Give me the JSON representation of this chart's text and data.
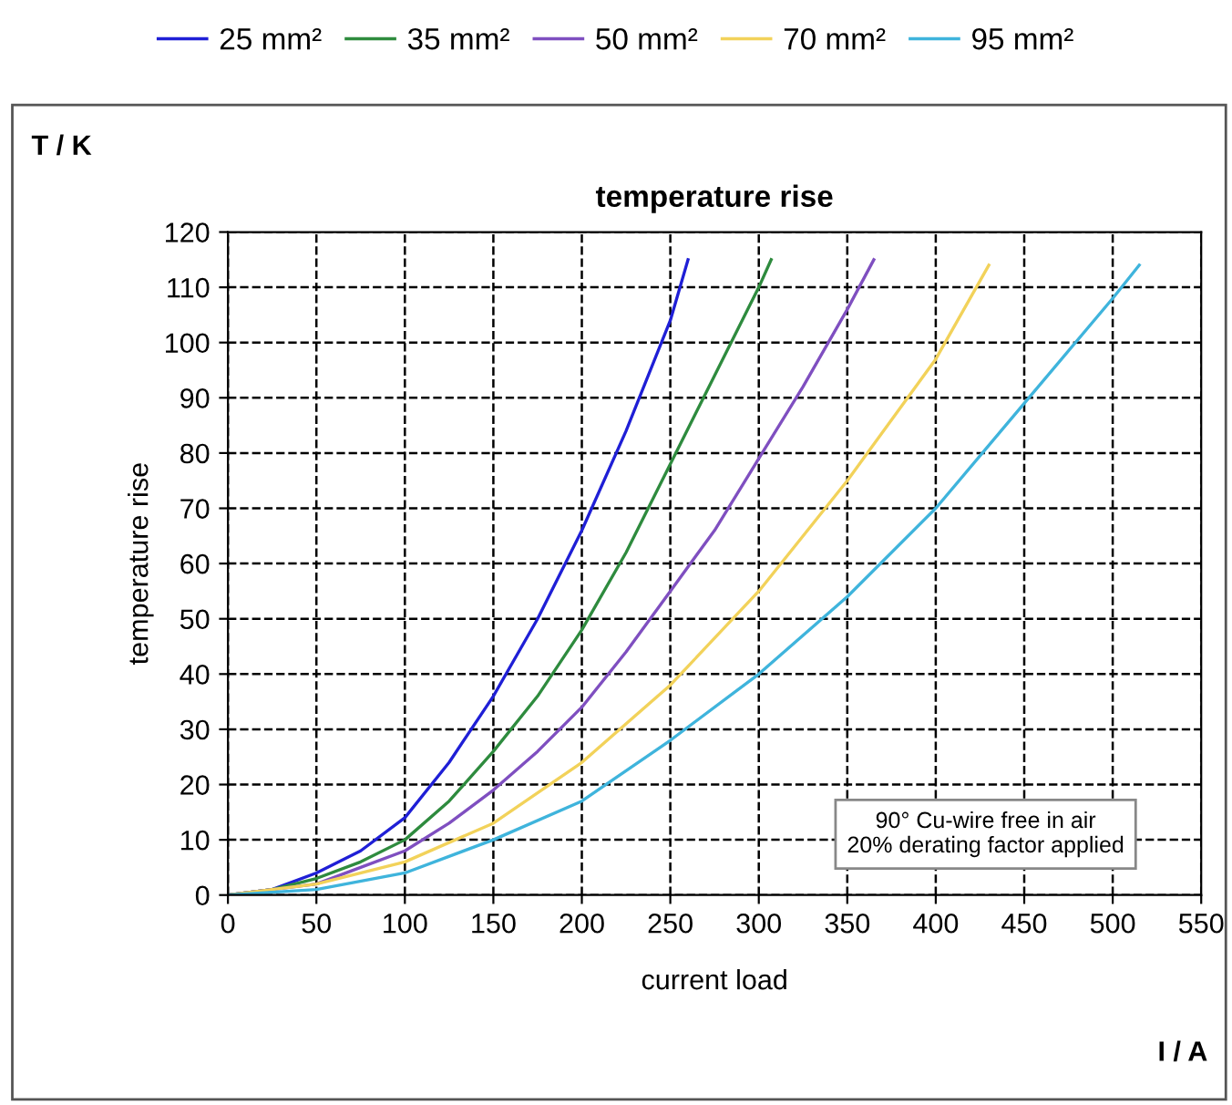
{
  "chart_data": {
    "type": "line",
    "title": "temperature rise",
    "xlabel": "current load",
    "ylabel": "temperature rise",
    "annotations": [
      "T / K",
      "I / A",
      "90° Cu-wire free in air\n20% derating factor applied"
    ],
    "xlim": [
      0,
      550
    ],
    "xticks": [
      0,
      50,
      100,
      150,
      200,
      250,
      300,
      350,
      400,
      450,
      500,
      550
    ],
    "ylim": [
      0,
      120
    ],
    "yticks": [
      0,
      10,
      20,
      30,
      40,
      50,
      60,
      70,
      80,
      90,
      100,
      110,
      120
    ],
    "grid": true,
    "legend": "top",
    "line_style": "solid",
    "marker": "none",
    "series": [
      {
        "name": "25 mm²",
        "color": "#1f1fd6",
        "x": [
          0,
          25,
          50,
          75,
          100,
          125,
          150,
          175,
          200,
          225,
          250,
          260
        ],
        "values": [
          0,
          1,
          4,
          8,
          14,
          24,
          36,
          50,
          66,
          84,
          104,
          115
        ]
      },
      {
        "name": "35 mm²",
        "color": "#2e8b3e",
        "x": [
          0,
          25,
          50,
          75,
          100,
          125,
          150,
          175,
          200,
          225,
          250,
          275,
          300,
          307
        ],
        "values": [
          0,
          1,
          3,
          6,
          10,
          17,
          26,
          36,
          48,
          62,
          78,
          94,
          110,
          115
        ]
      },
      {
        "name": "50 mm²",
        "color": "#7f4fc0",
        "x": [
          0,
          25,
          50,
          75,
          100,
          125,
          150,
          175,
          200,
          225,
          250,
          275,
          300,
          325,
          350,
          365
        ],
        "values": [
          0,
          1,
          2,
          5,
          8,
          13,
          19,
          26,
          34,
          44,
          55,
          66,
          79,
          92,
          106,
          115
        ]
      },
      {
        "name": "70 mm²",
        "color": "#f2d25a",
        "x": [
          0,
          50,
          100,
          150,
          200,
          250,
          300,
          350,
          400,
          430
        ],
        "values": [
          0,
          2,
          6,
          13,
          24,
          38,
          55,
          75,
          97,
          114
        ]
      },
      {
        "name": "95 mm²",
        "color": "#3fb4dc",
        "x": [
          0,
          50,
          100,
          150,
          200,
          250,
          300,
          350,
          400,
          450,
          500,
          515
        ],
        "values": [
          0,
          1,
          4,
          10,
          17,
          28,
          40,
          54,
          70,
          89,
          108,
          114
        ]
      }
    ]
  }
}
